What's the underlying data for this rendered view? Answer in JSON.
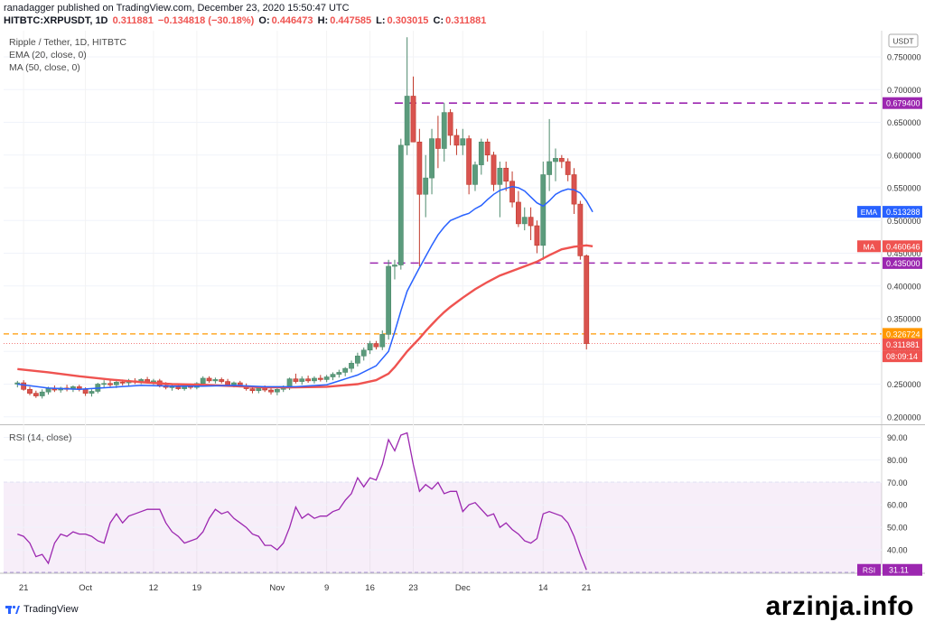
{
  "header": {
    "publisher_line": "ranadagger published on TradingView.com, December 23, 2020 15:50:47 UTC",
    "symbol": "HITBTC:XRPUSDT, 1D",
    "last": "0.311881",
    "change": "−0.134818 (−30.18%)",
    "open_label": "O:",
    "open": "0.446473",
    "high_label": "H:",
    "high": "0.447585",
    "low_label": "L:",
    "low": "0.303015",
    "close_label": "C:",
    "close": "0.311881"
  },
  "legend": {
    "title": "Ripple / Tether, 1D, HITBTC",
    "ema": "EMA (20, close, 0)",
    "ma": "MA (50, close, 0)",
    "rsi": "RSI (14, close)"
  },
  "price_axis": {
    "currency": "USDT",
    "ticks": [
      "0.750000",
      "0.700000",
      "0.650000",
      "0.600000",
      "0.550000",
      "0.500000",
      "0.450000",
      "0.400000",
      "0.350000",
      "0.300000",
      "0.250000",
      "0.200000"
    ],
    "tags": {
      "level_high": "0.679400",
      "ema_label": "EMA",
      "ema_value": "0.513288",
      "ma_label": "MA",
      "ma_value": "0.460646",
      "level_mid": "0.435000",
      "level_low": "0.326724",
      "last": "0.311881",
      "countdown": "08:09:14"
    }
  },
  "rsi_axis": {
    "ticks": [
      "90.00",
      "80.00",
      "70.00",
      "60.00",
      "50.00",
      "40.00"
    ],
    "tag_label": "RSI",
    "tag_value": "31.11"
  },
  "time_axis": {
    "labels": [
      {
        "text": "21",
        "i": 1
      },
      {
        "text": "Oct",
        "i": 11
      },
      {
        "text": "12",
        "i": 22
      },
      {
        "text": "19",
        "i": 29
      },
      {
        "text": "Nov",
        "i": 42
      },
      {
        "text": "9",
        "i": 50
      },
      {
        "text": "16",
        "i": 57
      },
      {
        "text": "23",
        "i": 64
      },
      {
        "text": "Dec",
        "i": 72
      },
      {
        "text": "14",
        "i": 85
      },
      {
        "text": "21",
        "i": 92
      }
    ]
  },
  "footer": {
    "brand": "TradingView",
    "watermark": "arzinja.info"
  },
  "colors": {
    "up": "#26a69a",
    "up_body": "#5b9b7c",
    "down": "#ef5350",
    "down_body": "#d9534f",
    "ema": "#2962ff",
    "ma": "#ef5350",
    "level": "#9c27b0",
    "level_orange": "#ff9800",
    "rsi": "#9c27b0"
  },
  "chart_data": {
    "type": "candlestick",
    "title": "Ripple / Tether, 1D, HITBTC",
    "ylim": [
      0.19,
      0.79
    ],
    "horizontal_levels": [
      0.6794,
      0.435,
      0.326724
    ],
    "candles": [
      [
        0.25,
        0.255,
        0.245,
        0.252
      ],
      [
        0.252,
        0.256,
        0.24,
        0.242
      ],
      [
        0.242,
        0.246,
        0.233,
        0.236
      ],
      [
        0.236,
        0.24,
        0.229,
        0.232
      ],
      [
        0.232,
        0.242,
        0.228,
        0.238
      ],
      [
        0.238,
        0.246,
        0.234,
        0.244
      ],
      [
        0.244,
        0.248,
        0.238,
        0.241
      ],
      [
        0.241,
        0.246,
        0.237,
        0.244
      ],
      [
        0.244,
        0.249,
        0.239,
        0.242
      ],
      [
        0.242,
        0.248,
        0.238,
        0.246
      ],
      [
        0.246,
        0.249,
        0.239,
        0.242
      ],
      [
        0.242,
        0.245,
        0.232,
        0.236
      ],
      [
        0.236,
        0.242,
        0.231,
        0.239
      ],
      [
        0.239,
        0.252,
        0.236,
        0.25
      ],
      [
        0.25,
        0.256,
        0.245,
        0.251
      ],
      [
        0.251,
        0.256,
        0.246,
        0.249
      ],
      [
        0.249,
        0.255,
        0.244,
        0.253
      ],
      [
        0.253,
        0.257,
        0.248,
        0.252
      ],
      [
        0.252,
        0.258,
        0.248,
        0.255
      ],
      [
        0.255,
        0.259,
        0.25,
        0.254
      ],
      [
        0.254,
        0.259,
        0.25,
        0.257
      ],
      [
        0.257,
        0.261,
        0.251,
        0.253
      ],
      [
        0.253,
        0.258,
        0.249,
        0.255
      ],
      [
        0.255,
        0.258,
        0.245,
        0.248
      ],
      [
        0.248,
        0.253,
        0.242,
        0.245
      ],
      [
        0.245,
        0.249,
        0.24,
        0.246
      ],
      [
        0.246,
        0.25,
        0.241,
        0.243
      ],
      [
        0.243,
        0.25,
        0.24,
        0.248
      ],
      [
        0.248,
        0.251,
        0.242,
        0.245
      ],
      [
        0.245,
        0.253,
        0.242,
        0.251
      ],
      [
        0.251,
        0.262,
        0.248,
        0.259
      ],
      [
        0.259,
        0.262,
        0.252,
        0.255
      ],
      [
        0.255,
        0.26,
        0.251,
        0.257
      ],
      [
        0.257,
        0.26,
        0.251,
        0.254
      ],
      [
        0.254,
        0.258,
        0.247,
        0.249
      ],
      [
        0.249,
        0.254,
        0.245,
        0.252
      ],
      [
        0.252,
        0.255,
        0.245,
        0.247
      ],
      [
        0.247,
        0.251,
        0.24,
        0.243
      ],
      [
        0.243,
        0.247,
        0.236,
        0.24
      ],
      [
        0.24,
        0.246,
        0.236,
        0.244
      ],
      [
        0.244,
        0.248,
        0.238,
        0.241
      ],
      [
        0.241,
        0.246,
        0.234,
        0.238
      ],
      [
        0.238,
        0.245,
        0.233,
        0.242
      ],
      [
        0.242,
        0.248,
        0.238,
        0.244
      ],
      [
        0.244,
        0.26,
        0.241,
        0.258
      ],
      [
        0.258,
        0.266,
        0.251,
        0.254
      ],
      [
        0.254,
        0.262,
        0.249,
        0.258
      ],
      [
        0.258,
        0.263,
        0.252,
        0.255
      ],
      [
        0.255,
        0.262,
        0.251,
        0.259
      ],
      [
        0.259,
        0.264,
        0.254,
        0.257
      ],
      [
        0.257,
        0.264,
        0.253,
        0.261
      ],
      [
        0.261,
        0.268,
        0.256,
        0.265
      ],
      [
        0.265,
        0.272,
        0.26,
        0.268
      ],
      [
        0.268,
        0.276,
        0.262,
        0.274
      ],
      [
        0.274,
        0.286,
        0.268,
        0.282
      ],
      [
        0.282,
        0.298,
        0.277,
        0.293
      ],
      [
        0.293,
        0.306,
        0.286,
        0.302
      ],
      [
        0.302,
        0.316,
        0.296,
        0.312
      ],
      [
        0.312,
        0.316,
        0.303,
        0.307
      ],
      [
        0.307,
        0.332,
        0.302,
        0.326
      ],
      [
        0.326,
        0.44,
        0.318,
        0.43
      ],
      [
        0.43,
        0.44,
        0.41,
        0.432
      ],
      [
        0.432,
        0.625,
        0.425,
        0.615
      ],
      [
        0.615,
        0.78,
        0.6,
        0.69
      ],
      [
        0.69,
        0.72,
        0.62,
        0.62
      ],
      [
        0.62,
        0.64,
        0.43,
        0.54
      ],
      [
        0.54,
        0.6,
        0.505,
        0.565
      ],
      [
        0.565,
        0.64,
        0.54,
        0.625
      ],
      [
        0.625,
        0.66,
        0.58,
        0.61
      ],
      [
        0.61,
        0.68,
        0.59,
        0.665
      ],
      [
        0.665,
        0.67,
        0.615,
        0.63
      ],
      [
        0.63,
        0.64,
        0.6,
        0.615
      ],
      [
        0.615,
        0.64,
        0.6,
        0.625
      ],
      [
        0.625,
        0.63,
        0.54,
        0.555
      ],
      [
        0.555,
        0.59,
        0.545,
        0.585
      ],
      [
        0.585,
        0.625,
        0.57,
        0.62
      ],
      [
        0.62,
        0.625,
        0.59,
        0.6
      ],
      [
        0.6,
        0.605,
        0.545,
        0.555
      ],
      [
        0.555,
        0.59,
        0.505,
        0.58
      ],
      [
        0.58,
        0.59,
        0.545,
        0.56
      ],
      [
        0.56,
        0.575,
        0.52,
        0.528
      ],
      [
        0.528,
        0.545,
        0.49,
        0.495
      ],
      [
        0.495,
        0.52,
        0.485,
        0.505
      ],
      [
        0.505,
        0.52,
        0.47,
        0.492
      ],
      [
        0.492,
        0.5,
        0.45,
        0.462
      ],
      [
        0.462,
        0.59,
        0.44,
        0.57
      ],
      [
        0.57,
        0.655,
        0.545,
        0.59
      ],
      [
        0.59,
        0.61,
        0.56,
        0.595
      ],
      [
        0.595,
        0.6,
        0.58,
        0.59
      ],
      [
        0.59,
        0.595,
        0.56,
        0.57
      ],
      [
        0.57,
        0.58,
        0.51,
        0.525
      ],
      [
        0.525,
        0.53,
        0.44,
        0.446
      ],
      [
        0.446,
        0.448,
        0.303,
        0.312
      ]
    ],
    "ema": [
      [
        0,
        0.25
      ],
      [
        5,
        0.244
      ],
      [
        10,
        0.242
      ],
      [
        15,
        0.245
      ],
      [
        20,
        0.248
      ],
      [
        25,
        0.247
      ],
      [
        30,
        0.247
      ],
      [
        35,
        0.248
      ],
      [
        40,
        0.246
      ],
      [
        45,
        0.246
      ],
      [
        50,
        0.249
      ],
      [
        55,
        0.264
      ],
      [
        58,
        0.278
      ],
      [
        60,
        0.3
      ],
      [
        61,
        0.33
      ],
      [
        62,
        0.362
      ],
      [
        63,
        0.392
      ],
      [
        64,
        0.41
      ],
      [
        65,
        0.428
      ],
      [
        66,
        0.445
      ],
      [
        67,
        0.462
      ],
      [
        68,
        0.478
      ],
      [
        69,
        0.49
      ],
      [
        70,
        0.5
      ],
      [
        71,
        0.504
      ],
      [
        72,
        0.508
      ],
      [
        73,
        0.511
      ],
      [
        74,
        0.518
      ],
      [
        75,
        0.523
      ],
      [
        76,
        0.532
      ],
      [
        77,
        0.54
      ],
      [
        78,
        0.546
      ],
      [
        79,
        0.549
      ],
      [
        80,
        0.552
      ],
      [
        81,
        0.55
      ],
      [
        82,
        0.545
      ],
      [
        83,
        0.536
      ],
      [
        84,
        0.527
      ],
      [
        85,
        0.522
      ],
      [
        86,
        0.53
      ],
      [
        87,
        0.54
      ],
      [
        88,
        0.545
      ],
      [
        89,
        0.548
      ],
      [
        90,
        0.547
      ],
      [
        91,
        0.542
      ],
      [
        92,
        0.53
      ],
      [
        93,
        0.513
      ]
    ],
    "ma": [
      [
        0,
        0.273
      ],
      [
        5,
        0.268
      ],
      [
        10,
        0.262
      ],
      [
        15,
        0.257
      ],
      [
        20,
        0.253
      ],
      [
        25,
        0.25
      ],
      [
        30,
        0.249
      ],
      [
        35,
        0.247
      ],
      [
        40,
        0.245
      ],
      [
        45,
        0.245
      ],
      [
        50,
        0.246
      ],
      [
        55,
        0.25
      ],
      [
        58,
        0.256
      ],
      [
        60,
        0.266
      ],
      [
        61,
        0.276
      ],
      [
        62,
        0.288
      ],
      [
        63,
        0.3
      ],
      [
        64,
        0.31
      ],
      [
        65,
        0.32
      ],
      [
        66,
        0.331
      ],
      [
        67,
        0.341
      ],
      [
        68,
        0.351
      ],
      [
        69,
        0.36
      ],
      [
        70,
        0.368
      ],
      [
        72,
        0.382
      ],
      [
        74,
        0.395
      ],
      [
        76,
        0.406
      ],
      [
        78,
        0.416
      ],
      [
        80,
        0.423
      ],
      [
        82,
        0.43
      ],
      [
        84,
        0.437
      ],
      [
        86,
        0.447
      ],
      [
        88,
        0.456
      ],
      [
        90,
        0.46
      ],
      [
        92,
        0.462
      ],
      [
        93,
        0.4606
      ]
    ],
    "rsi": {
      "ylim": [
        30,
        95
      ],
      "band": [
        30,
        70
      ],
      "values": [
        [
          0,
          47
        ],
        [
          1,
          46
        ],
        [
          2,
          43
        ],
        [
          3,
          37
        ],
        [
          4,
          38
        ],
        [
          5,
          34
        ],
        [
          6,
          43
        ],
        [
          7,
          47
        ],
        [
          8,
          46
        ],
        [
          9,
          48
        ],
        [
          10,
          47
        ],
        [
          11,
          47
        ],
        [
          12,
          46
        ],
        [
          13,
          44
        ],
        [
          14,
          43
        ],
        [
          15,
          52
        ],
        [
          16,
          56
        ],
        [
          17,
          52
        ],
        [
          18,
          55
        ],
        [
          19,
          56
        ],
        [
          20,
          57
        ],
        [
          21,
          58
        ],
        [
          22,
          58
        ],
        [
          23,
          58
        ],
        [
          24,
          52
        ],
        [
          25,
          48
        ],
        [
          26,
          46
        ],
        [
          27,
          43
        ],
        [
          28,
          44
        ],
        [
          29,
          45
        ],
        [
          30,
          48
        ],
        [
          31,
          54
        ],
        [
          32,
          58
        ],
        [
          33,
          56
        ],
        [
          34,
          57
        ],
        [
          35,
          54
        ],
        [
          36,
          52
        ],
        [
          37,
          50
        ],
        [
          38,
          47
        ],
        [
          39,
          46
        ],
        [
          40,
          42
        ],
        [
          41,
          42
        ],
        [
          42,
          40
        ],
        [
          43,
          43
        ],
        [
          44,
          50
        ],
        [
          45,
          59
        ],
        [
          46,
          54
        ],
        [
          47,
          56
        ],
        [
          48,
          54
        ],
        [
          49,
          55
        ],
        [
          50,
          55
        ],
        [
          51,
          57
        ],
        [
          52,
          58
        ],
        [
          53,
          62
        ],
        [
          54,
          65
        ],
        [
          55,
          72
        ],
        [
          56,
          68
        ],
        [
          57,
          72
        ],
        [
          58,
          71
        ],
        [
          59,
          78
        ],
        [
          60,
          89
        ],
        [
          61,
          84
        ],
        [
          62,
          91
        ],
        [
          63,
          92
        ],
        [
          64,
          78
        ],
        [
          65,
          66
        ],
        [
          66,
          69
        ],
        [
          67,
          67
        ],
        [
          68,
          70
        ],
        [
          69,
          65
        ],
        [
          70,
          66
        ],
        [
          71,
          66
        ],
        [
          72,
          57
        ],
        [
          73,
          60
        ],
        [
          74,
          61
        ],
        [
          75,
          58
        ],
        [
          76,
          55
        ],
        [
          77,
          56
        ],
        [
          78,
          50
        ],
        [
          79,
          52
        ],
        [
          80,
          49
        ],
        [
          81,
          47
        ],
        [
          82,
          44
        ],
        [
          83,
          43
        ],
        [
          84,
          45
        ],
        [
          85,
          56
        ],
        [
          86,
          57
        ],
        [
          87,
          56
        ],
        [
          88,
          55
        ],
        [
          89,
          52
        ],
        [
          90,
          46
        ],
        [
          91,
          38
        ],
        [
          92,
          31.11
        ]
      ]
    }
  }
}
